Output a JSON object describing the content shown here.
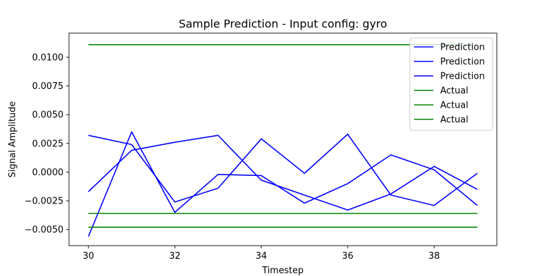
{
  "chart_data": {
    "type": "line",
    "title": "Sample Prediction - Input config: gyro",
    "xlabel": "Timestep",
    "ylabel": "Signal Amplitude",
    "xlim": [
      29.55,
      39.45
    ],
    "ylim": [
      -0.0064,
      0.0121
    ],
    "xticks": [
      30,
      32,
      34,
      36,
      38
    ],
    "xtick_labels": [
      "30",
      "32",
      "34",
      "36",
      "38"
    ],
    "yticks": [
      -0.005,
      -0.0025,
      0.0,
      0.0025,
      0.005,
      0.0075,
      0.01
    ],
    "ytick_labels": [
      "−0.0050",
      "−0.0025",
      "0.0000",
      "0.0025",
      "0.0050",
      "0.0075",
      "0.0100"
    ],
    "grid": false,
    "legend_position": "top-right",
    "x": [
      30,
      31,
      32,
      33,
      34,
      35,
      36,
      37,
      38,
      39
    ],
    "series": [
      {
        "name": "Prediction",
        "color": "#0000ff",
        "values": [
          0.0032,
          0.0024,
          -0.0026,
          -0.0014,
          0.0029,
          -0.0001,
          0.0033,
          -0.002,
          -0.0029,
          -0.0001
        ]
      },
      {
        "name": "Prediction",
        "color": "#0000ff",
        "values": [
          -0.0017,
          0.0019,
          0.0026,
          0.0032,
          -0.0007,
          -0.002,
          -0.0033,
          -0.0019,
          0.0005,
          -0.0015
        ]
      },
      {
        "name": "Prediction",
        "color": "#0000ff",
        "values": [
          -0.0056,
          0.0035,
          -0.0035,
          -0.0002,
          -0.0003,
          -0.0027,
          -0.001,
          0.0015,
          0.0002,
          -0.0029
        ]
      },
      {
        "name": "Actual",
        "color": "#008000",
        "values": [
          0.0111,
          0.0111,
          0.0111,
          0.0111,
          0.0111,
          0.0111,
          0.0111,
          0.0111,
          0.0111,
          0.0111
        ]
      },
      {
        "name": "Actual",
        "color": "#008000",
        "values": [
          -0.0036,
          -0.0036,
          -0.0036,
          -0.0036,
          -0.0036,
          -0.0036,
          -0.0036,
          -0.0036,
          -0.0036,
          -0.0036
        ]
      },
      {
        "name": "Actual",
        "color": "#008000",
        "values": [
          -0.0048,
          -0.0048,
          -0.0048,
          -0.0048,
          -0.0048,
          -0.0048,
          -0.0048,
          -0.0048,
          -0.0048,
          -0.0048
        ]
      }
    ]
  }
}
